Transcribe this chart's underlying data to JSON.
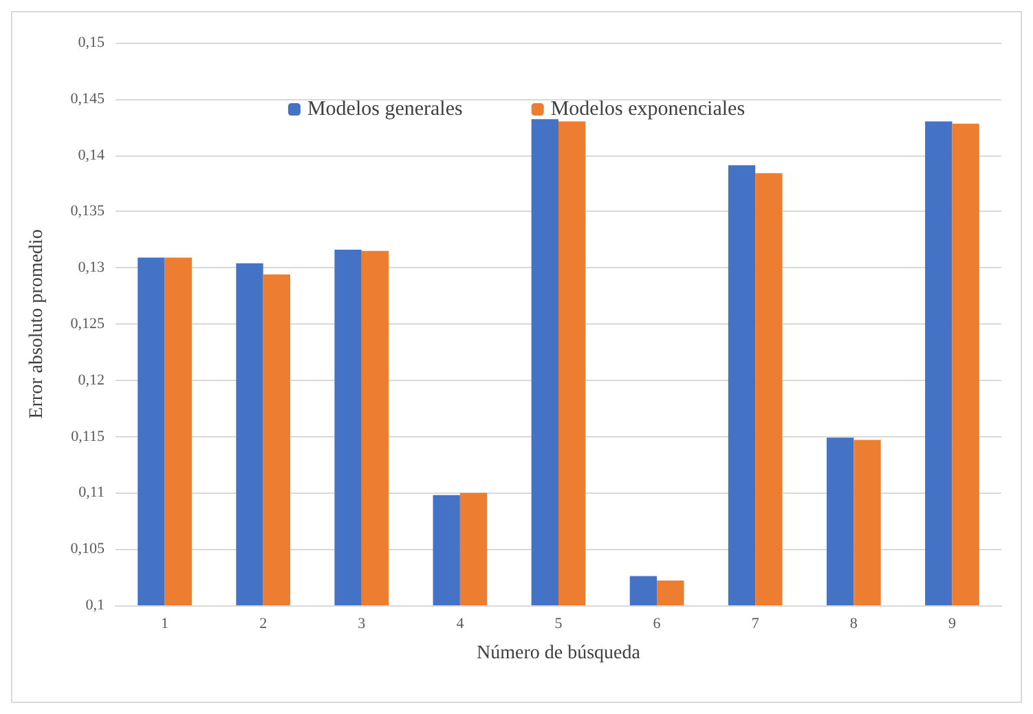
{
  "chart_data": {
    "type": "bar",
    "xlabel": "Número de búsqueda",
    "ylabel": "Error absoluto promedio",
    "categories": [
      "1",
      "2",
      "3",
      "4",
      "5",
      "6",
      "7",
      "8",
      "9"
    ],
    "series": [
      {
        "name": "Modelos generales",
        "color": "#4472c4",
        "values": [
          0.1309,
          0.1304,
          0.1316,
          0.1098,
          0.1432,
          0.1026,
          0.1391,
          0.1149,
          0.143
        ]
      },
      {
        "name": "Modelos exponenciales",
        "color": "#ed7d31",
        "values": [
          0.1309,
          0.1294,
          0.1315,
          0.11,
          0.143,
          0.1022,
          0.1384,
          0.1147,
          0.1428
        ]
      }
    ],
    "ylim": [
      0.1,
      0.15
    ],
    "yticks": [
      {
        "value": 0.1,
        "label": "0,1"
      },
      {
        "value": 0.105,
        "label": "0,105"
      },
      {
        "value": 0.11,
        "label": "0,11"
      },
      {
        "value": 0.115,
        "label": "0,115"
      },
      {
        "value": 0.12,
        "label": "0,12"
      },
      {
        "value": 0.125,
        "label": "0,125"
      },
      {
        "value": 0.13,
        "label": "0,13"
      },
      {
        "value": 0.135,
        "label": "0,135"
      },
      {
        "value": 0.14,
        "label": "0,14"
      },
      {
        "value": 0.145,
        "label": "0,145"
      },
      {
        "value": 0.15,
        "label": "0,15"
      }
    ],
    "grid": "y",
    "legend": "top"
  }
}
